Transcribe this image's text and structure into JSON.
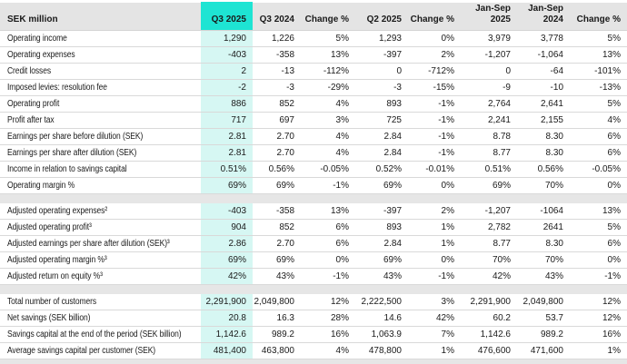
{
  "title": "Quarterly financial overview table",
  "unit_label": "SEK million",
  "colors": {
    "highlight_header": "#1ee4d3",
    "highlight_column": "#d6f7f3",
    "header_background": "#e4e4e4",
    "spacer_band": "#e6e6e6",
    "row_border": "#d9d9d9",
    "text": "#1a1a1a"
  },
  "table": {
    "columns": [
      "SEK million",
      "Q3 2025",
      "Q3 2024",
      "Change %",
      "Q2 2025",
      "Change %",
      "Jan-Sep\n2025",
      "Jan-Sep\n2024",
      "Change %"
    ],
    "highlighted_column": "Q3 2025",
    "rows": [
      {
        "label": "Operating income",
        "values": [
          "1,290",
          "1,226",
          "5%",
          "1,293",
          "0%",
          "3,979",
          "3,778",
          "5%"
        ]
      },
      {
        "label": "Operating expenses",
        "values": [
          "-403",
          "-358",
          "13%",
          "-397",
          "2%",
          "-1,207",
          "-1,064",
          "13%"
        ]
      },
      {
        "label": "Credit losses",
        "values": [
          "2",
          "-13",
          "-112%",
          "0",
          "-712%",
          "0",
          "-64",
          "-101%"
        ]
      },
      {
        "label": "Imposed levies: resolution fee",
        "values": [
          "-2",
          "-3",
          "-29%",
          "-3",
          "-15%",
          "-9",
          "-10",
          "-13%"
        ]
      },
      {
        "label": "Operating profit",
        "values": [
          "886",
          "852",
          "4%",
          "893",
          "-1%",
          "2,764",
          "2,641",
          "5%"
        ]
      },
      {
        "label": "Profit after tax",
        "values": [
          "717",
          "697",
          "3%",
          "725",
          "-1%",
          "2,241",
          "2,155",
          "4%"
        ]
      },
      {
        "label": "Earnings per share before dilution (SEK)",
        "values": [
          "2.81",
          "2.70",
          "4%",
          "2.84",
          "-1%",
          "8.78",
          "8.30",
          "6%"
        ]
      },
      {
        "label": "Earnings per share after dilution (SEK)",
        "values": [
          "2.81",
          "2.70",
          "4%",
          "2.84",
          "-1%",
          "8.77",
          "8.30",
          "6%"
        ]
      },
      {
        "label": "Income in relation to savings capital",
        "values": [
          "0.51%",
          "0.56%",
          "-0.05%",
          "0.52%",
          "-0.01%",
          "0.51%",
          "0.56%",
          "-0.05%"
        ]
      },
      {
        "label": "Operating margin %",
        "values": [
          "69%",
          "69%",
          "-1%",
          "69%",
          "0%",
          "69%",
          "70%",
          "0%"
        ]
      },
      {
        "spacer": true
      },
      {
        "label": "Adjusted operating expenses²",
        "values": [
          "-403",
          "-358",
          "13%",
          "-397",
          "2%",
          "-1,207",
          "-1064",
          "13%"
        ]
      },
      {
        "label": "Adjusted operating profit³",
        "values": [
          "904",
          "852",
          "6%",
          "893",
          "1%",
          "2,782",
          "2641",
          "5%"
        ]
      },
      {
        "label": "Adjusted earnings per share after dilution (SEK)³",
        "values": [
          "2.86",
          "2.70",
          "6%",
          "2.84",
          "1%",
          "8.77",
          "8.30",
          "6%"
        ]
      },
      {
        "label": "Adjusted operating margin %³",
        "values": [
          "69%",
          "69%",
          "0%",
          "69%",
          "0%",
          "70%",
          "70%",
          "0%"
        ]
      },
      {
        "label": "Adjusted return on equity %³",
        "values": [
          "42%",
          "43%",
          "-1%",
          "43%",
          "-1%",
          "42%",
          "43%",
          "-1%"
        ]
      },
      {
        "spacer": true
      },
      {
        "label": "Total number of customers",
        "values": [
          "2,291,900",
          "2,049,800",
          "12%",
          "2,222,500",
          "3%",
          "2,291,900",
          "2,049,800",
          "12%"
        ]
      },
      {
        "label": "Net savings (SEK billion)",
        "values": [
          "20.8",
          "16.3",
          "28%",
          "14.6",
          "42%",
          "60.2",
          "53.7",
          "12%"
        ]
      },
      {
        "label": "Savings capital at the end of the period (SEK billion)",
        "values": [
          "1,142.6",
          "989.2",
          "16%",
          "1,063.9",
          "7%",
          "1,142.6",
          "989.2",
          "16%"
        ]
      },
      {
        "label": "Average savings capital per customer (SEK)",
        "values": [
          "481,400",
          "463,800",
          "4%",
          "478,800",
          "1%",
          "476,600",
          "471,600",
          "1%"
        ]
      }
    ]
  }
}
